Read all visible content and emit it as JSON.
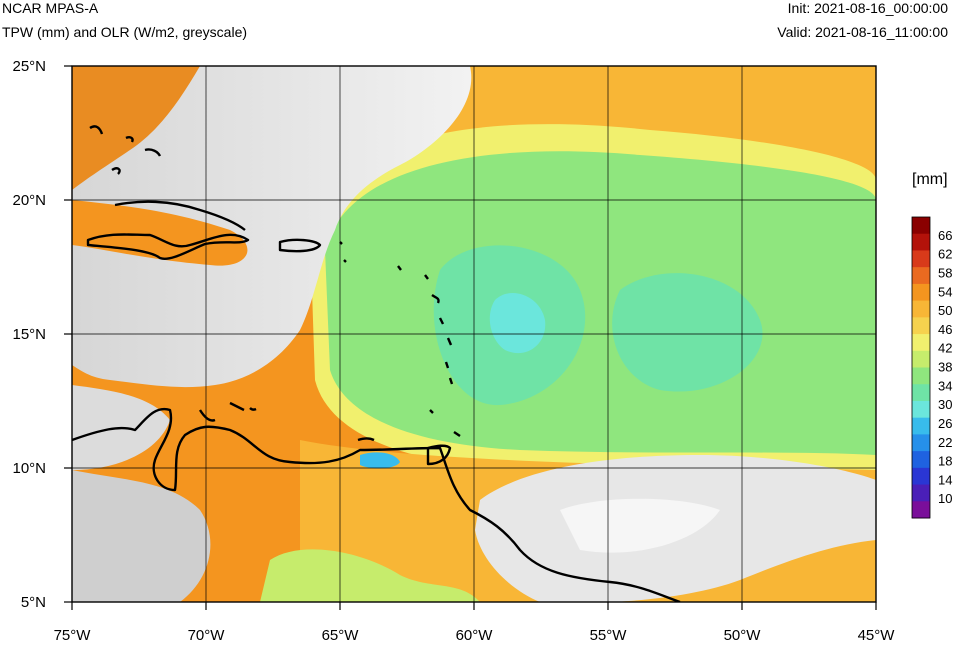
{
  "header": {
    "model": "NCAR MPAS-A",
    "fields": "TPW (mm) and OLR (W/m2, greyscale)",
    "init": "Init: 2021-08-16_00:00:00",
    "valid": "Valid: 2021-08-16_11:00:00"
  },
  "map": {
    "lon_ticks": [
      "75°W",
      "70°W",
      "65°W",
      "60°W",
      "55°W",
      "50°W",
      "45°W"
    ],
    "lat_ticks": [
      "25°N",
      "20°N",
      "15°N",
      "10°N",
      "5°N"
    ]
  },
  "colorbar": {
    "unit": "[mm]",
    "labels": [
      "66",
      "62",
      "58",
      "54",
      "50",
      "46",
      "42",
      "38",
      "34",
      "30",
      "26",
      "22",
      "18",
      "14",
      "10"
    ],
    "colors": [
      "#8a0000",
      "#b3120a",
      "#d83a1a",
      "#ea6a20",
      "#f4951f",
      "#f8b636",
      "#f6d24e",
      "#f1f06e",
      "#c6ec6c",
      "#8fe67e",
      "#6fe3a6",
      "#6be6dc",
      "#38bcec",
      "#2690ea",
      "#1f62e0",
      "#2a36d4",
      "#4a1fb8",
      "#7a0e9a"
    ]
  }
}
